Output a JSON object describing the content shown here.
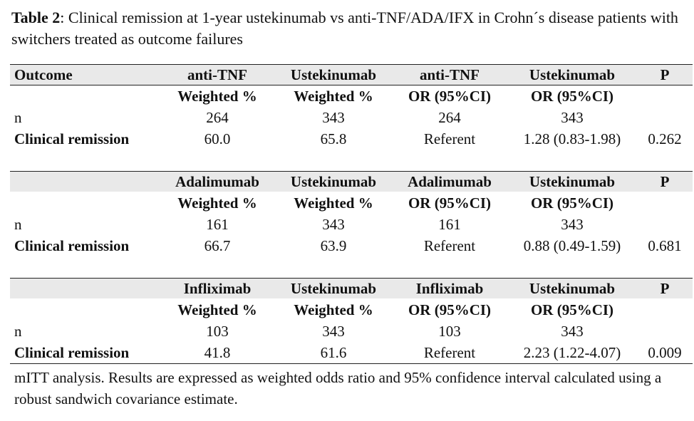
{
  "title": {
    "label": "Table 2",
    "text": ": Clinical remission at 1-year ustekinumab vs anti-TNF/ADA/IFX in Crohn´s disease patients with switchers treated as outcome failures"
  },
  "table": {
    "header": "Outcome",
    "blocks": [
      {
        "columns": [
          "anti-TNF",
          "Ustekinumab",
          "anti-TNF",
          "Ustekinumab",
          "P"
        ],
        "subcolumns": [
          "Weighted %",
          "Weighted %",
          "OR (95%CI)",
          "OR (95%CI)"
        ],
        "rows": [
          [
            "n",
            "264",
            "343",
            "264",
            "343"
          ],
          [
            "Clinical remission",
            "60.0",
            "65.8",
            "Referent",
            "1.28 (0.83-1.98)",
            "0.262"
          ]
        ]
      },
      {
        "columns": [
          "Adalimumab",
          "Ustekinumab",
          "Adalimumab",
          "Ustekinumab",
          "P"
        ],
        "subcolumns": [
          "Weighted %",
          "Weighted %",
          "OR (95%CI)",
          "OR (95%CI)"
        ],
        "rows": [
          [
            "n",
            "161",
            "343",
            "161",
            "343"
          ],
          [
            "Clinical remission",
            "66.7",
            "63.9",
            "Referent",
            "0.88 (0.49-1.59)",
            "0.681"
          ]
        ]
      },
      {
        "columns": [
          "Infliximab",
          "Ustekinumab",
          "Infliximab",
          "Ustekinumab",
          "P"
        ],
        "subcolumns": [
          "Weighted %",
          "Weighted %",
          "OR (95%CI)",
          "OR (95%CI)"
        ],
        "rows": [
          [
            "n",
            "103",
            "343",
            "103",
            "343"
          ],
          [
            "Clinical remission",
            "41.8",
            "61.6",
            "Referent",
            "2.23 (1.22-4.07)",
            "0.009"
          ]
        ]
      }
    ]
  },
  "footnote": "mITT analysis. Results are expressed as weighted odds ratio and 95% confidence interval calculated using a robust sandwich covariance estimate."
}
